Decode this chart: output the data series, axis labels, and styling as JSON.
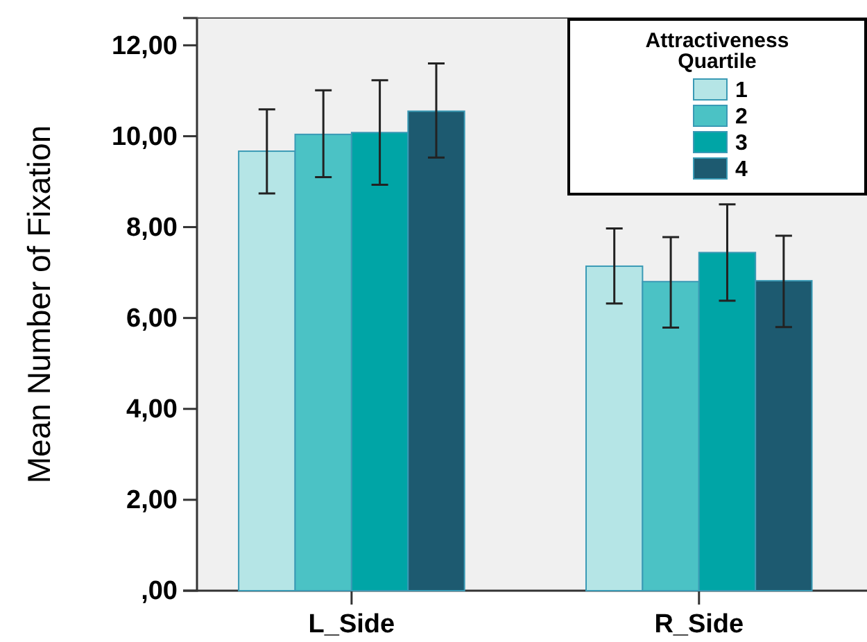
{
  "chart_data": {
    "type": "bar",
    "ylabel": "Mean Number of Fixation",
    "legend_title": "Attractiveness Quartile",
    "categories": [
      "L_Side",
      "R_Side"
    ],
    "series": [
      {
        "name": "1",
        "color": "#b5e5e6",
        "values": [
          9.67,
          7.14
        ],
        "errors": [
          [
            8.74,
            10.59
          ],
          [
            6.32,
            7.97
          ]
        ]
      },
      {
        "name": "2",
        "color": "#4bc2c5",
        "values": [
          10.04,
          6.8
        ],
        "errors": [
          [
            9.1,
            11.01
          ],
          [
            5.79,
            7.78
          ]
        ]
      },
      {
        "name": "3",
        "color": "#00a5a6",
        "values": [
          10.08,
          7.44
        ],
        "errors": [
          [
            8.93,
            11.23
          ],
          [
            6.38,
            8.5
          ]
        ]
      },
      {
        "name": "4",
        "color": "#1d5a70",
        "values": [
          10.55,
          6.82
        ],
        "errors": [
          [
            9.53,
            11.6
          ],
          [
            5.8,
            7.81
          ]
        ]
      }
    ],
    "ylim": [
      0,
      12.6
    ],
    "yticks": [
      {
        "value": 0,
        "label": ",00"
      },
      {
        "value": 2,
        "label": "2,00"
      },
      {
        "value": 4,
        "label": "4,00"
      },
      {
        "value": 6,
        "label": "6,00"
      },
      {
        "value": 8,
        "label": "8,00"
      },
      {
        "value": 10,
        "label": "10,00"
      },
      {
        "value": 12,
        "label": "12,00"
      }
    ],
    "grid": false,
    "legend": "top right"
  }
}
